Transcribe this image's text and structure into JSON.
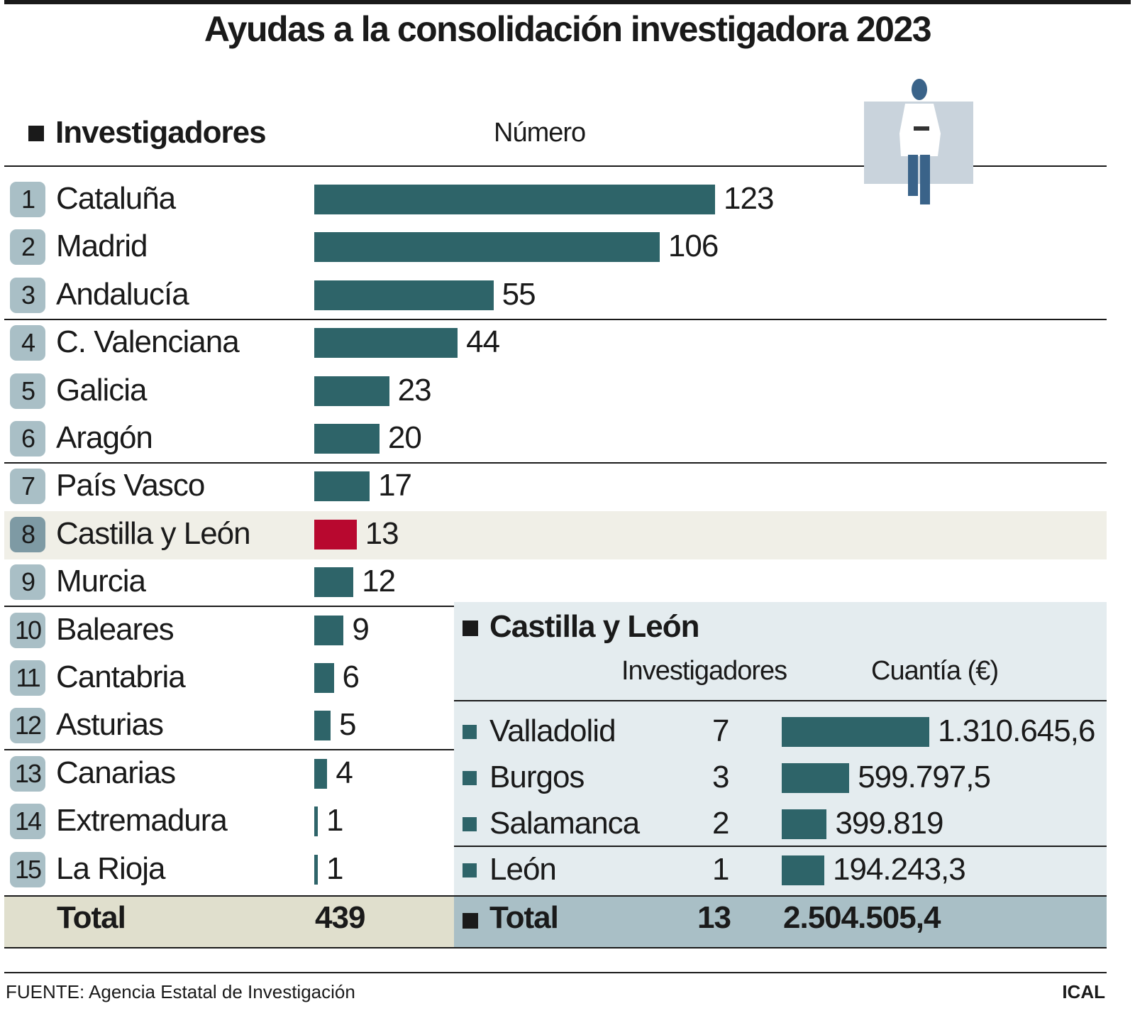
{
  "title": "Ayudas a la consolidación investigadora 2023",
  "colors": {
    "bar": "#2e6469",
    "highlight_bar": "#b8082f",
    "badge": "#a9bfc6",
    "highlight_row": "#f0efe7",
    "left_total_bg": "#e0dfcd",
    "right_panel_bg": "#e4ecef",
    "right_total_bg": "#a9bfc6"
  },
  "chart_data": [
    {
      "type": "bar",
      "orientation": "horizontal",
      "title": "Investigadores",
      "value_label": "Número",
      "categories": [
        "Cataluña",
        "Madrid",
        "Andalucía",
        "C. Valenciana",
        "Galicia",
        "Aragón",
        "País Vasco",
        "Castilla y León",
        "Murcia",
        "Baleares",
        "Cantabria",
        "Asturias",
        "Canarias",
        "Extremadura",
        "La Rioja"
      ],
      "ranks": [
        "1",
        "2",
        "3",
        "4",
        "5",
        "6",
        "7",
        "8",
        "9",
        "10",
        "11",
        "12",
        "13",
        "14",
        "15"
      ],
      "values": [
        123,
        106,
        55,
        44,
        23,
        20,
        17,
        13,
        12,
        9,
        6,
        5,
        4,
        1,
        1
      ],
      "highlighted": "Castilla y León",
      "total_label": "Total",
      "total_value": "439"
    },
    {
      "type": "table",
      "title": "Castilla y León",
      "columns": [
        "Investigadores",
        "Cuantía (€)"
      ],
      "categories": [
        "Valladolid",
        "Burgos",
        "Salamanca",
        "León"
      ],
      "investigadores": [
        7,
        3,
        2,
        1
      ],
      "cuantia": [
        1310645.6,
        599797.5,
        399819,
        194243.3
      ],
      "cuantia_labels": [
        "1.310.645,6",
        "599.797,5",
        "399.819",
        "194.243,3"
      ],
      "total_label": "Total",
      "total_investigadores": "13",
      "total_cuantia": "2.504.505,4"
    }
  ],
  "footer": {
    "source": "FUENTE: Agencia Estatal de Investigación",
    "credit": "ICAL"
  },
  "icons": {
    "section_marker": "square-bullet-icon",
    "illustration": "researcher-icon"
  }
}
